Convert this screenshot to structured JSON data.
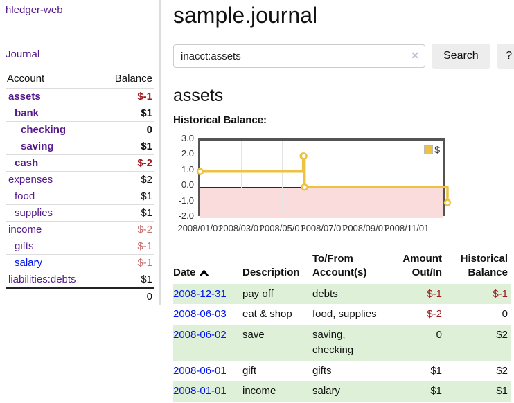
{
  "app": {
    "title": "hledger-web",
    "nav_journal": "Journal"
  },
  "sidebar": {
    "header": {
      "account": "Account",
      "balance": "Balance"
    },
    "accounts": [
      {
        "label": "assets",
        "depth": 1,
        "bold": true,
        "balance": "$-1",
        "balance_tone": "neg-strong",
        "link_tone": "purple"
      },
      {
        "label": "bank",
        "depth": 2,
        "bold": true,
        "balance": "$1",
        "balance_tone": "normal",
        "link_tone": "purple"
      },
      {
        "label": "checking",
        "depth": 3,
        "bold": true,
        "balance": "0",
        "balance_tone": "normal",
        "link_tone": "purple"
      },
      {
        "label": "saving",
        "depth": 3,
        "bold": true,
        "balance": "$1",
        "balance_tone": "normal",
        "link_tone": "purple"
      },
      {
        "label": "cash",
        "depth": 2,
        "bold": true,
        "balance": "$-2",
        "balance_tone": "neg-strong",
        "link_tone": "purple"
      },
      {
        "label": "expenses",
        "depth": 1,
        "bold": false,
        "balance": "$2",
        "balance_tone": "normal",
        "link_tone": "purple"
      },
      {
        "label": "food",
        "depth": 2,
        "bold": false,
        "balance": "$1",
        "balance_tone": "normal",
        "link_tone": "purple"
      },
      {
        "label": "supplies",
        "depth": 2,
        "bold": false,
        "balance": "$1",
        "balance_tone": "normal",
        "link_tone": "purple"
      },
      {
        "label": "income",
        "depth": 1,
        "bold": false,
        "balance": "$-2",
        "balance_tone": "neg-soft",
        "link_tone": "purple"
      },
      {
        "label": "gifts",
        "depth": 2,
        "bold": false,
        "balance": "$-1",
        "balance_tone": "neg-soft",
        "link_tone": "purple"
      },
      {
        "label": "salary",
        "depth": 2,
        "bold": false,
        "balance": "$-1",
        "balance_tone": "neg-soft",
        "link_tone": "blue"
      },
      {
        "label": "liabilities:debts",
        "depth": 1,
        "bold": false,
        "balance": "$1",
        "balance_tone": "normal",
        "link_tone": "purple"
      }
    ],
    "total": "0"
  },
  "header": {
    "title": "sample.journal"
  },
  "search": {
    "value": "inacct:assets",
    "clear_icon": "✕",
    "button_label": "Search",
    "help_label": "?"
  },
  "account_page": {
    "title": "assets",
    "chart_heading": "Historical Balance:"
  },
  "chart_data": {
    "type": "line",
    "title": "Historical Balance",
    "step": true,
    "xlim": [
      "2008-01-01",
      "2008-12-31"
    ],
    "ylim": [
      -2,
      3
    ],
    "y_ticks": [
      "3.0",
      "2.0",
      "1.0",
      "0.0",
      "-1.0",
      "-2.0"
    ],
    "x_ticks": [
      "2008/01/01",
      "2008/03/01",
      "2008/05/01",
      "2008/07/01",
      "2008/09/01",
      "2008/11/01"
    ],
    "series": [
      {
        "name": "$",
        "color": "#edc240",
        "points": [
          [
            "2008-01-01",
            1
          ],
          [
            "2008-06-01",
            2
          ],
          [
            "2008-06-02",
            2
          ],
          [
            "2008-06-03",
            0
          ],
          [
            "2008-12-31",
            -1
          ]
        ]
      }
    ],
    "legend": {
      "label": "$",
      "position": "top-right"
    },
    "zero_line_color": "#8b0000",
    "negative_region_fill": "#fbdcdc",
    "grid": true
  },
  "transactions": {
    "columns": [
      "Date",
      "Description",
      "To/From Account(s)",
      "Amount Out/In",
      "Historical Balance"
    ],
    "date_sort_icon": "chevron-up",
    "rows": [
      {
        "date": "2008-12-31",
        "description": "pay off",
        "accounts": "debts",
        "amount": "$-1",
        "amount_tone": "neg",
        "balance": "$-1",
        "balance_tone": "neg"
      },
      {
        "date": "2008-06-03",
        "description": "eat & shop",
        "accounts": "food, supplies",
        "amount": "$-2",
        "amount_tone": "neg",
        "balance": "0",
        "balance_tone": "normal"
      },
      {
        "date": "2008-06-02",
        "description": "save",
        "accounts": "saving, checking",
        "amount": "0",
        "amount_tone": "normal",
        "balance": "$2",
        "balance_tone": "normal"
      },
      {
        "date": "2008-06-01",
        "description": "gift",
        "accounts": "gifts",
        "amount": "$1",
        "amount_tone": "normal",
        "balance": "$2",
        "balance_tone": "normal"
      },
      {
        "date": "2008-01-01",
        "description": "income",
        "accounts": "salary",
        "amount": "$1",
        "amount_tone": "normal",
        "balance": "$1",
        "balance_tone": "normal"
      }
    ]
  },
  "colors": {
    "link_purple": "#551a8b",
    "link_blue": "#0013ee",
    "negative_strong": "#9d1b1e",
    "negative_soft": "#c76f6f",
    "row_stripe_green": "#dff0d8",
    "chart_gold": "#edc240"
  }
}
